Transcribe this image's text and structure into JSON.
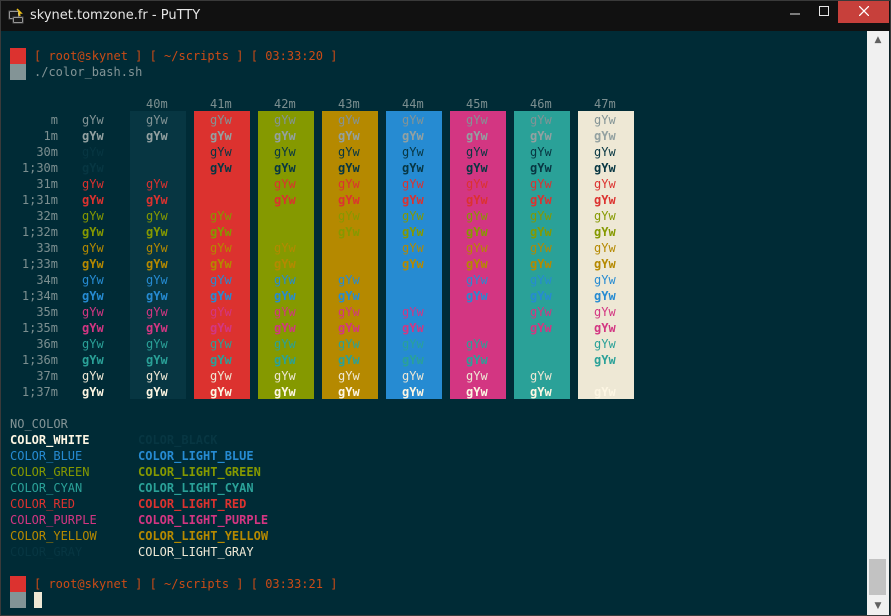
{
  "window": {
    "title": "skynet.tomzone.fr - PuTTY",
    "icons": {
      "app": "putty-terminal-icon",
      "minimize": "minimize-icon",
      "maximize": "maximize-icon",
      "close": "close-icon"
    }
  },
  "terminal": {
    "colors": {
      "background": "#002b36",
      "prompt_marker_red": "#dc322f",
      "prompt_marker_gray": "#839496",
      "prompt_text": "#cb4b16",
      "default_fg": "#839496"
    },
    "prompt1": "[ root@skynet ] [ ~/scripts ] [ 03:33:20 ]",
    "command": "./color_bash.sh",
    "prompt2": "[ root@skynet ] [ ~/scripts ] [ 03:33:21 ]",
    "table": {
      "sample_text": "gYw",
      "bg_headers": [
        "40m",
        "41m",
        "42m",
        "43m",
        "44m",
        "45m",
        "46m",
        "47m"
      ],
      "row_labels": [
        "m",
        "1m",
        "30m",
        "1;30m",
        "31m",
        "1;31m",
        "32m",
        "1;32m",
        "33m",
        "1;33m",
        "34m",
        "1;34m",
        "35m",
        "1;35m",
        "36m",
        "1;36m",
        "37m",
        "1;37m"
      ],
      "bg_colors": [
        "#073642",
        "#dc322f",
        "#859900",
        "#b58900",
        "#268bd2",
        "#d33682",
        "#2aa198",
        "#eee8d5"
      ],
      "fg_colors": {
        "default": "#839496",
        "default_bold": "#93a1a1",
        "30": "#073642",
        "1;30": "#073642",
        "31": "#dc322f",
        "1;31": "#dc322f",
        "32": "#859900",
        "1;32": "#859900",
        "33": "#b58900",
        "1;33": "#b58900",
        "34": "#268bd2",
        "1;34": "#268bd2",
        "35": "#d33682",
        "1;35": "#d33682",
        "36": "#2aa198",
        "1;36": "#2aa198",
        "37": "#eee8d5",
        "1;37": "#fdf6e3"
      }
    },
    "color_names": {
      "left": [
        {
          "label": "NO_COLOR",
          "color": "#839496",
          "bold": false
        },
        {
          "label": "COLOR_WHITE",
          "color": "#fdf6e3",
          "bold": true
        },
        {
          "label": "COLOR_BLUE",
          "color": "#268bd2",
          "bold": false
        },
        {
          "label": "COLOR_GREEN",
          "color": "#859900",
          "bold": false
        },
        {
          "label": "COLOR_CYAN",
          "color": "#2aa198",
          "bold": false
        },
        {
          "label": "COLOR_RED",
          "color": "#dc322f",
          "bold": false
        },
        {
          "label": "COLOR_PURPLE",
          "color": "#d33682",
          "bold": false
        },
        {
          "label": "COLOR_YELLOW",
          "color": "#b58900",
          "bold": false
        },
        {
          "label": "COLOR_GRAY",
          "color": "#073642",
          "bold": false
        }
      ],
      "right": [
        {
          "label": "",
          "color": "#839496",
          "bold": false
        },
        {
          "label": "COLOR_BLACK",
          "color": "#073642",
          "bold": true
        },
        {
          "label": "COLOR_LIGHT_BLUE",
          "color": "#268bd2",
          "bold": true
        },
        {
          "label": "COLOR_LIGHT_GREEN",
          "color": "#859900",
          "bold": true
        },
        {
          "label": "COLOR_LIGHT_CYAN",
          "color": "#2aa198",
          "bold": true
        },
        {
          "label": "COLOR_LIGHT_RED",
          "color": "#dc322f",
          "bold": true
        },
        {
          "label": "COLOR_LIGHT_PURPLE",
          "color": "#d33682",
          "bold": true
        },
        {
          "label": "COLOR_LIGHT_YELLOW",
          "color": "#b58900",
          "bold": true
        },
        {
          "label": "COLOR_LIGHT_GRAY",
          "color": "#eee8d5",
          "bold": false
        }
      ]
    }
  }
}
